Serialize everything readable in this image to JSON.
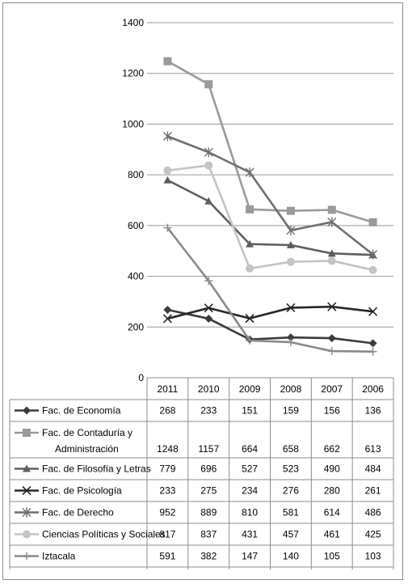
{
  "chart_data": {
    "type": "line",
    "title": "",
    "xlabel": "",
    "ylabel": "",
    "ylim": [
      0,
      1400
    ],
    "yticks": [
      0,
      200,
      400,
      600,
      800,
      1000,
      1200,
      1400
    ],
    "grid": true,
    "legend": "data-table",
    "categories": [
      "2011",
      "2010",
      "2009",
      "2008",
      "2007",
      "2006"
    ],
    "series": [
      {
        "name": "Fac. de Economía",
        "label_lines": [
          "Fac. de Economía"
        ],
        "values": [
          268,
          233,
          151,
          159,
          156,
          136
        ],
        "color": "#3b3b3b",
        "marker": "diamond"
      },
      {
        "name": "Fac. de Contaduría y Administración",
        "label_lines": [
          "Fac. de Contaduría y",
          "Administración"
        ],
        "values": [
          1248,
          1157,
          664,
          658,
          662,
          613
        ],
        "color": "#9a9a9a",
        "marker": "square"
      },
      {
        "name": "Fac. de Filosofía y Letras",
        "label_lines": [
          "Fac. de Filosofía y Letras"
        ],
        "values": [
          779,
          696,
          527,
          523,
          490,
          484
        ],
        "color": "#5e5e5e",
        "marker": "triangle"
      },
      {
        "name": "Fac. de Psicología",
        "label_lines": [
          "Fac. de Psicología"
        ],
        "values": [
          233,
          275,
          234,
          276,
          280,
          261
        ],
        "color": "#262626",
        "marker": "x"
      },
      {
        "name": "Fac. de Derecho",
        "label_lines": [
          "Fac. de Derecho"
        ],
        "values": [
          952,
          889,
          810,
          581,
          614,
          486
        ],
        "color": "#6f6f6f",
        "marker": "star"
      },
      {
        "name": "Ciencias Políticas y Sociales",
        "label_lines": [
          "Ciencias Políticas y Sociales"
        ],
        "values": [
          817,
          837,
          431,
          457,
          461,
          425
        ],
        "color": "#c4c4c4",
        "marker": "circle"
      },
      {
        "name": "Iztacala",
        "label_lines": [
          "Iztacala"
        ],
        "values": [
          591,
          382,
          147,
          140,
          105,
          103
        ],
        "color": "#8a8a8a",
        "marker": "plus"
      }
    ]
  }
}
